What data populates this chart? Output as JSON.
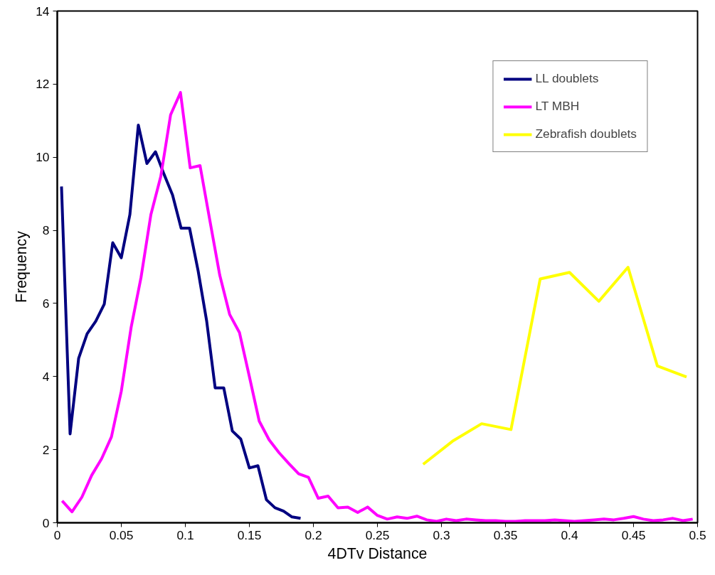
{
  "chart_data": {
    "type": "line",
    "xlabel": "4DTv Distance",
    "ylabel": "Frequency",
    "xlim": [
      0,
      0.5
    ],
    "xticks": [
      0,
      0.05,
      0.1,
      0.15,
      0.2,
      0.25,
      0.3,
      0.35,
      0.4,
      0.45,
      0.5
    ],
    "ylim": [
      0,
      14
    ],
    "yticks": [
      0,
      2,
      4,
      6,
      8,
      10,
      12,
      14
    ],
    "grid": false,
    "legend": "top right",
    "marker": "none",
    "line_style": "solid",
    "series": [
      {
        "name": "LL doublets",
        "color": "#000080",
        "x": [
          0.0033,
          0.01,
          0.0167,
          0.0233,
          0.03,
          0.0367,
          0.0433,
          0.05,
          0.0567,
          0.0633,
          0.07,
          0.0767,
          0.0833,
          0.09,
          0.0967,
          0.1033,
          0.11,
          0.1167,
          0.1233,
          0.13,
          0.1367,
          0.1433,
          0.15,
          0.1567,
          0.1633,
          0.17,
          0.1767,
          0.1833,
          0.19
        ],
        "values": [
          9.2,
          2.43,
          4.5,
          5.17,
          5.51,
          5.98,
          7.66,
          7.25,
          8.43,
          10.88,
          9.83,
          10.15,
          9.54,
          8.97,
          8.06,
          8.06,
          6.89,
          5.51,
          3.69,
          3.69,
          2.51,
          2.29,
          1.5,
          1.56,
          0.63,
          0.41,
          0.32,
          0.16,
          0.12
        ]
      },
      {
        "name": "LT MBH",
        "color": "#ff00ff",
        "x": [
          0.0038,
          0.0115,
          0.0192,
          0.0269,
          0.0346,
          0.0423,
          0.05,
          0.0577,
          0.0654,
          0.0731,
          0.0808,
          0.0885,
          0.0962,
          0.1038,
          0.1115,
          0.1192,
          0.1269,
          0.1346,
          0.1423,
          0.15,
          0.1577,
          0.1654,
          0.1731,
          0.1808,
          0.1885,
          0.1962,
          0.2038,
          0.2115,
          0.2192,
          0.2269,
          0.2346,
          0.2423,
          0.25,
          0.2577,
          0.2654,
          0.2731,
          0.2808,
          0.2885,
          0.2962,
          0.3038,
          0.3115,
          0.3192,
          0.3269,
          0.3346,
          0.3423,
          0.35,
          0.3577,
          0.3654,
          0.3731,
          0.3808,
          0.3885,
          0.3962,
          0.4038,
          0.4115,
          0.4192,
          0.4269,
          0.4346,
          0.4423,
          0.45,
          0.4577,
          0.4654,
          0.4731,
          0.4808,
          0.4885,
          0.4962
        ],
        "values": [
          0.6,
          0.3,
          0.7,
          1.3,
          1.75,
          2.35,
          3.6,
          5.35,
          6.71,
          8.43,
          9.47,
          11.16,
          11.77,
          9.71,
          9.77,
          8.26,
          6.77,
          5.7,
          5.2,
          4.0,
          2.78,
          2.27,
          1.92,
          1.62,
          1.34,
          1.24,
          0.67,
          0.73,
          0.41,
          0.43,
          0.28,
          0.43,
          0.2,
          0.1,
          0.16,
          0.12,
          0.18,
          0.08,
          0.04,
          0.1,
          0.06,
          0.1,
          0.08,
          0.06,
          0.06,
          0.04,
          0.04,
          0.06,
          0.06,
          0.06,
          0.08,
          0.06,
          0.04,
          0.06,
          0.08,
          0.1,
          0.08,
          0.12,
          0.17,
          0.1,
          0.06,
          0.08,
          0.12,
          0.06,
          0.1
        ]
      },
      {
        "name": "Zebrafish doublets",
        "color": "#ffff00",
        "x": [
          0.2857,
          0.3086,
          0.3314,
          0.3543,
          0.3771,
          0.4,
          0.4229,
          0.4457,
          0.4686,
          0.4914
        ],
        "values": [
          1.6,
          2.23,
          2.71,
          2.55,
          6.67,
          6.85,
          6.06,
          6.99,
          4.29,
          3.99
        ]
      }
    ]
  }
}
